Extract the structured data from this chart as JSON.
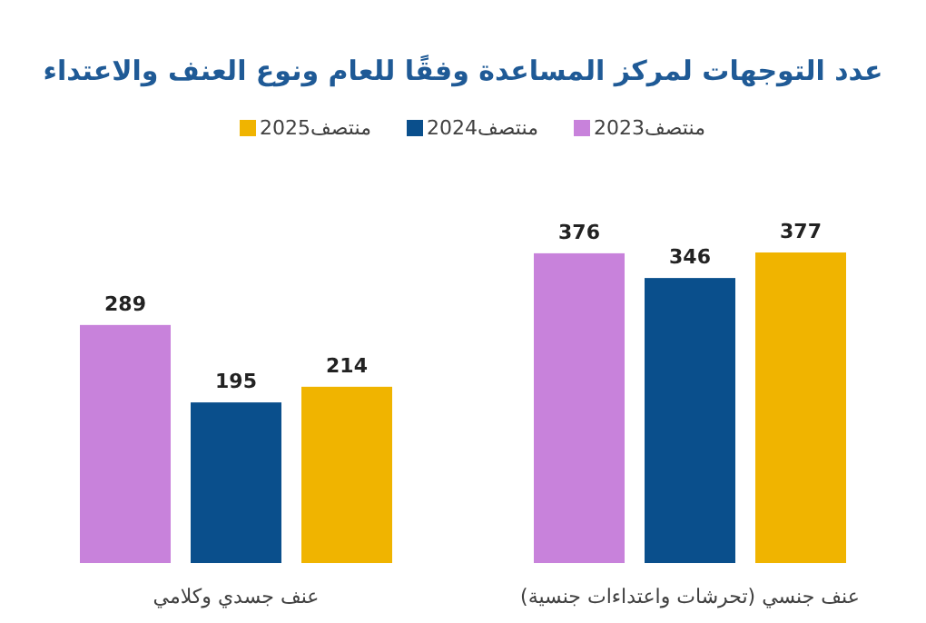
{
  "chart_data": {
    "type": "bar",
    "title": "عدد التوجهات لمركز المساعدة وفقًا للعام ونوع العنف والاعتداء",
    "categories": [
      "عنف جسدي وكلامي",
      "عنف جنسي (تحرشات واعتداءات جنسية)"
    ],
    "series": [
      {
        "name": "منتصف2023",
        "color": "#c882db",
        "values": [
          289,
          376
        ]
      },
      {
        "name": "منتصف2024",
        "color": "#0a4f8c",
        "values": [
          195,
          346
        ]
      },
      {
        "name": "منتصف2025",
        "color": "#f0b400",
        "values": [
          214,
          377
        ]
      }
    ],
    "data_labels": true,
    "legend": "top"
  }
}
